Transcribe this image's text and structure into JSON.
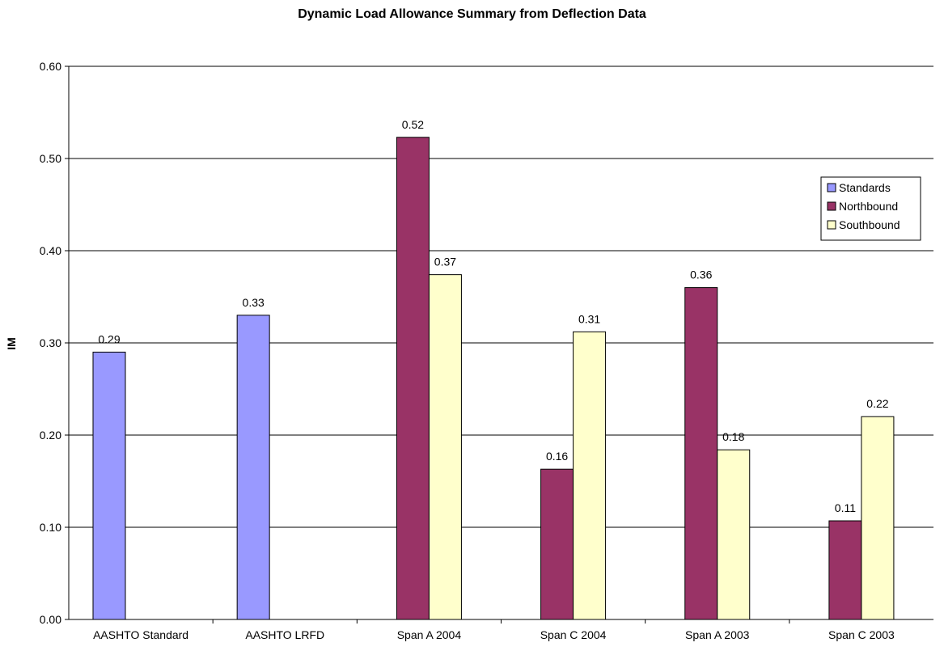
{
  "chart_data": {
    "type": "bar",
    "title": "Dynamic Load Allowance Summary from Deflection Data",
    "xlabel": "",
    "ylabel": "IM",
    "ylim": [
      0,
      0.6
    ],
    "yticks": [
      "0.00",
      "0.10",
      "0.20",
      "0.30",
      "0.40",
      "0.50",
      "0.60"
    ],
    "grid": true,
    "legend_position": "top-right",
    "categories": [
      "AASHTO Standard",
      "AASHTO LRFD",
      "Span A 2004",
      "Span C 2004",
      "Span A 2003",
      "Span C 2003"
    ],
    "series": [
      {
        "name": "Standards",
        "color": "#9999ff",
        "values": [
          0.29,
          0.33,
          null,
          null,
          null,
          null
        ],
        "labels": [
          "0.29",
          "0.33",
          "",
          "",
          "",
          ""
        ]
      },
      {
        "name": "Northbound",
        "color": "#993366",
        "values": [
          null,
          null,
          0.523,
          0.163,
          0.36,
          0.107
        ],
        "labels": [
          "",
          "",
          "0.52",
          "0.16",
          "0.36",
          "0.11"
        ]
      },
      {
        "name": "Southbound",
        "color": "#ffffcc",
        "values": [
          null,
          null,
          0.374,
          0.312,
          0.184,
          0.22
        ],
        "labels": [
          "",
          "",
          "0.37",
          "0.31",
          "0.18",
          "0.22"
        ]
      }
    ]
  }
}
